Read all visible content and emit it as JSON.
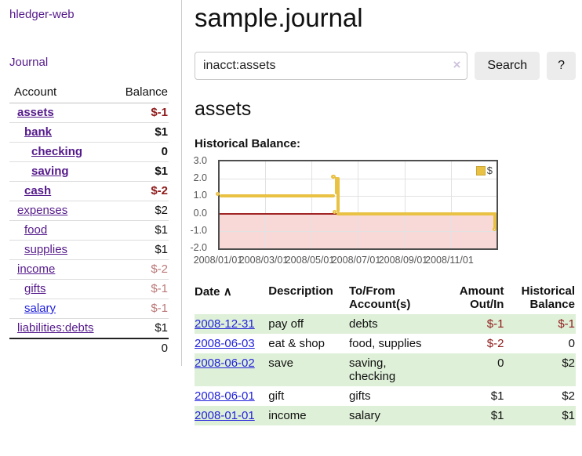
{
  "app": {
    "title": "hledger-web"
  },
  "sidebar": {
    "journal_label": "Journal",
    "accounts_table": {
      "headers": {
        "account": "Account",
        "balance": "Balance"
      },
      "rows": [
        {
          "name": "assets",
          "depth": 1,
          "bold": true,
          "link_color": "purple",
          "balance": "$-1",
          "tone": "strong-negative"
        },
        {
          "name": "bank",
          "depth": 2,
          "bold": true,
          "link_color": "purple",
          "balance": "$1",
          "tone": "normal"
        },
        {
          "name": "checking",
          "depth": 3,
          "bold": true,
          "link_color": "purple",
          "balance": "0",
          "tone": "normal"
        },
        {
          "name": "saving",
          "depth": 3,
          "bold": true,
          "link_color": "purple",
          "balance": "$1",
          "tone": "normal"
        },
        {
          "name": "cash",
          "depth": 2,
          "bold": true,
          "link_color": "purple",
          "balance": "$-2",
          "tone": "strong-negative"
        },
        {
          "name": "expenses",
          "depth": 1,
          "bold": false,
          "link_color": "purple",
          "balance": "$2",
          "tone": "normal"
        },
        {
          "name": "food",
          "depth": 2,
          "bold": false,
          "link_color": "purple",
          "balance": "$1",
          "tone": "normal"
        },
        {
          "name": "supplies",
          "depth": 2,
          "bold": false,
          "link_color": "purple",
          "balance": "$1",
          "tone": "normal"
        },
        {
          "name": "income",
          "depth": 1,
          "bold": false,
          "link_color": "purple",
          "balance": "$-2",
          "tone": "muted-negative"
        },
        {
          "name": "gifts",
          "depth": 2,
          "bold": false,
          "link_color": "purple",
          "balance": "$-1",
          "tone": "muted-negative"
        },
        {
          "name": "salary",
          "depth": 2,
          "bold": false,
          "link_color": "blue",
          "balance": "$-1",
          "tone": "muted-negative"
        },
        {
          "name": "liabilities:debts",
          "depth": 1,
          "bold": false,
          "link_color": "purple",
          "balance": "$1",
          "tone": "normal"
        }
      ],
      "total": "0"
    }
  },
  "header": {
    "title": "sample.journal"
  },
  "search": {
    "value": "inacct:assets",
    "clear_icon": "×",
    "search_button": "Search",
    "help_button": "?"
  },
  "account_page": {
    "heading": "assets",
    "chart_label": "Historical Balance:"
  },
  "register": {
    "headers": {
      "date": "Date",
      "sort_icon": "∧",
      "description": "Description",
      "accounts": "To/From\nAccount(s)",
      "amount": "Amount\nOut/In",
      "balance": "Historical\nBalance"
    },
    "rows": [
      {
        "date": "2008-12-31",
        "description": "pay off",
        "accounts": "debts",
        "amount": "$-1",
        "amount_negative": true,
        "balance": "$-1",
        "balance_negative": true
      },
      {
        "date": "2008-06-03",
        "description": "eat & shop",
        "accounts": "food, supplies",
        "amount": "$-2",
        "amount_negative": true,
        "balance": "0",
        "balance_negative": false
      },
      {
        "date": "2008-06-02",
        "description": "save",
        "accounts": "saving,\nchecking",
        "amount": "0",
        "amount_negative": false,
        "balance": "$2",
        "balance_negative": false
      },
      {
        "date": "2008-06-01",
        "description": "gift",
        "accounts": "gifts",
        "amount": "$1",
        "amount_negative": false,
        "balance": "$2",
        "balance_negative": false
      },
      {
        "date": "2008-01-01",
        "description": "income",
        "accounts": "salary",
        "amount": "$1",
        "amount_negative": false,
        "balance": "$1",
        "balance_negative": false
      }
    ]
  },
  "colors": {
    "link_purple": "#551a8b",
    "link_blue": "#2323dc",
    "negative_strong": "#8f1a1a",
    "negative_muted": "#bb7878",
    "row_green": "#dff0d8",
    "chart_line": "#e9c143",
    "chart_negative_fill": "#f9d8d8",
    "chart_zero_line": "#a02525",
    "chart_border": "#4e4e4e"
  },
  "chart_data": {
    "type": "line",
    "title": "Historical Balance:",
    "steps": true,
    "xlim": [
      0,
      365
    ],
    "ylim": [
      -2,
      3
    ],
    "grid": true,
    "legend": {
      "label": "$",
      "position": "top-right"
    },
    "series": [
      {
        "name": "$",
        "color": "#e9c143",
        "points": [
          {
            "date": "2008-01-01",
            "x": 0,
            "y": 1
          },
          {
            "date": "2008-06-01",
            "x": 152,
            "y": 2
          },
          {
            "date": "2008-06-02",
            "x": 153,
            "y": 2
          },
          {
            "date": "2008-06-03",
            "x": 154,
            "y": 0
          },
          {
            "date": "2008-12-31",
            "x": 365,
            "y": -1
          }
        ]
      }
    ],
    "xticks": [
      {
        "x": 0,
        "label": "2008/01/01"
      },
      {
        "x": 60,
        "label": "2008/03/01"
      },
      {
        "x": 121,
        "label": "2008/05/01"
      },
      {
        "x": 182,
        "label": "2008/07/01"
      },
      {
        "x": 244,
        "label": "2008/09/01"
      },
      {
        "x": 305,
        "label": "2008/11/01"
      }
    ],
    "yticks": [
      {
        "y": 3,
        "label": "3.0"
      },
      {
        "y": 2,
        "label": "2.0"
      },
      {
        "y": 1,
        "label": "1.0"
      },
      {
        "y": 0,
        "label": "0.0"
      },
      {
        "y": -1,
        "label": "-1.0"
      },
      {
        "y": -2,
        "label": "-2.0"
      }
    ]
  }
}
